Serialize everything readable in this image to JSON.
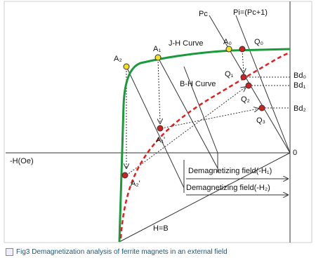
{
  "diagram": {
    "lines": {
      "pc": "Pc",
      "pi": "Pi=(Pc+1)",
      "hb": "H=B"
    },
    "curves": {
      "jh": "J-H Curve",
      "bh": "B-H Curve"
    },
    "axis": {
      "h": "-H(Oe)",
      "origin": "0"
    },
    "points": {
      "a2": "A₂",
      "a1": "A₁",
      "a0": "A₀",
      "q0": "Q₀",
      "q1": "Q₁",
      "q2": "Q₂",
      "q3": "Q₃",
      "a1p": "A₁'",
      "a2p": "A₂'"
    },
    "levels": {
      "bd0": "Bd₀",
      "bd1": "Bd₁",
      "bd2": "Bd₂"
    },
    "fields": {
      "h1": "Demagnetizing field(-H₁)",
      "h2": "Demagnetizing field(-H₂)"
    }
  },
  "caption": "Fig3 Demagnetization analysis of ferrite magnets in an external field"
}
